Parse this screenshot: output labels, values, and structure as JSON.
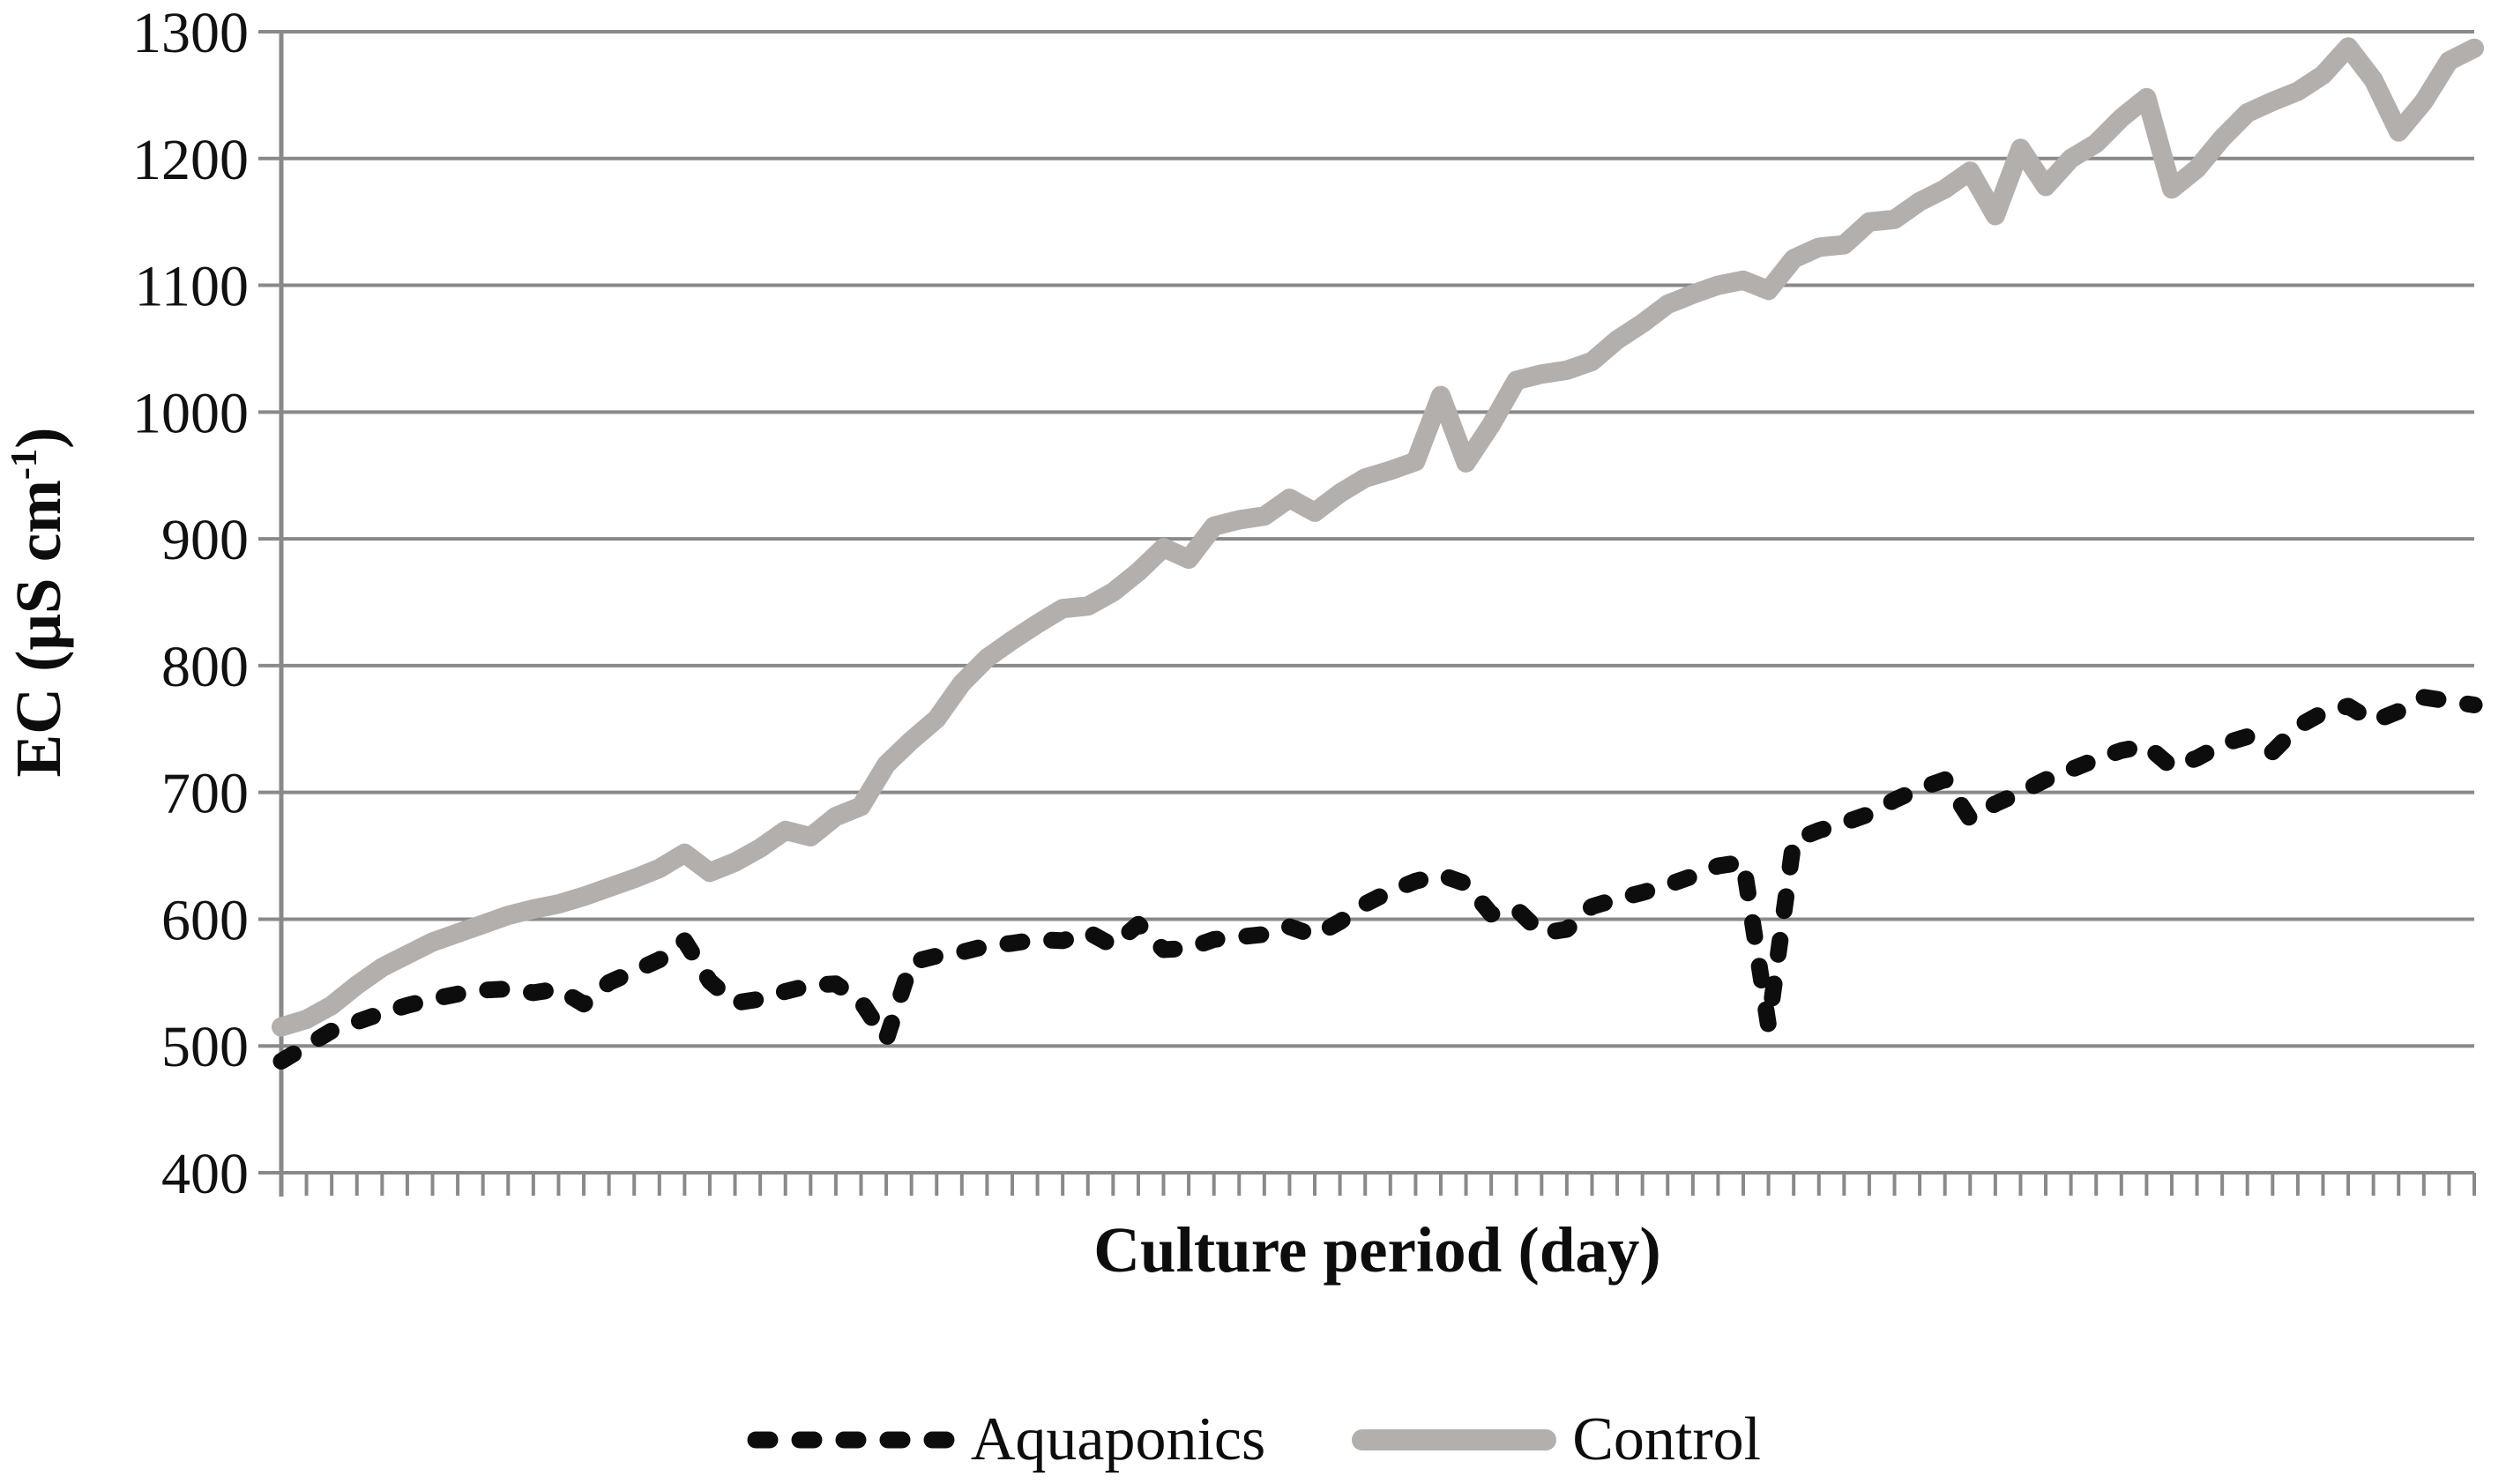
{
  "axes": {
    "x": {
      "title": "Culture period (day)",
      "tick_count": 88,
      "tick_labels_visible": false
    },
    "y": {
      "title_prefix": "EC (μS cm",
      "title_sup": "-1",
      "title_suffix": ")",
      "tick_labels": [
        400,
        500,
        600,
        700,
        800,
        900,
        1000,
        1100,
        1200,
        1300
      ]
    }
  },
  "legend": {
    "items": [
      {
        "label": "Aquaponics",
        "style": "dashed",
        "color": "#0d0d0d"
      },
      {
        "label": "Control",
        "style": "solid",
        "color": "#b3afad"
      }
    ]
  },
  "colors": {
    "aquaponics": "#0d0d0d",
    "control": "#b3afad",
    "grid": "#898989",
    "text": "#111111",
    "background": "#ffffff"
  },
  "chart_data": {
    "type": "line",
    "title": "",
    "xlabel": "Culture period (day)",
    "ylabel": "EC (μS cm-1)",
    "ylim": [
      400,
      1300
    ],
    "yticks": [
      400,
      500,
      600,
      700,
      800,
      900,
      1000,
      1100,
      1200,
      1300
    ],
    "grid": "horizontal",
    "legend_position": "bottom",
    "x_unit": "day",
    "x": [
      1,
      2,
      3,
      4,
      5,
      6,
      7,
      8,
      9,
      10,
      11,
      12,
      13,
      14,
      15,
      16,
      17,
      18,
      19,
      20,
      21,
      22,
      23,
      24,
      25,
      26,
      27,
      28,
      29,
      30,
      31,
      32,
      33,
      34,
      35,
      36,
      37,
      38,
      39,
      40,
      41,
      42,
      43,
      44,
      45,
      46,
      47,
      48,
      49,
      50,
      51,
      52,
      53,
      54,
      55,
      56,
      57,
      58,
      59,
      60,
      61,
      62,
      63,
      64,
      65,
      66,
      67,
      68,
      69,
      70,
      71,
      72,
      73,
      74,
      75,
      76,
      77,
      78,
      79,
      80,
      81,
      82,
      83,
      84,
      85,
      86,
      87,
      88
    ],
    "series": [
      {
        "name": "Aquaponics",
        "line_style": "dashed",
        "color": "#0d0d0d",
        "values": [
          488,
          500,
          512,
          519,
          526,
          532,
          537,
          541,
          544,
          545,
          542,
          545,
          533,
          550,
          559,
          568,
          583,
          551,
          534,
          537,
          543,
          548,
          549,
          535,
          505,
          566,
          571,
          574,
          579,
          581,
          584,
          583,
          590,
          579,
          596,
          576,
          577,
          584,
          586,
          588,
          594,
          587,
          598,
          612,
          622,
          630,
          635,
          628,
          604,
          608,
          589,
          592,
          610,
          616,
          621,
          627,
          634,
          642,
          645,
          516,
          662,
          670,
          676,
          683,
          694,
          703,
          710,
          679,
          691,
          700,
          710,
          718,
          726,
          733,
          737,
          720,
          727,
          738,
          744,
          732,
          752,
          763,
          768,
          756,
          764,
          775,
          772,
          769
        ]
      },
      {
        "name": "Control",
        "line_style": "solid",
        "color": "#b3afad",
        "values": [
          515,
          521,
          532,
          548,
          562,
          572,
          582,
          589,
          596,
          603,
          608,
          612,
          618,
          625,
          632,
          640,
          652,
          637,
          645,
          656,
          670,
          665,
          681,
          689,
          722,
          741,
          758,
          786,
          806,
          820,
          833,
          845,
          847,
          858,
          874,
          893,
          884,
          910,
          915,
          918,
          932,
          921,
          936,
          948,
          954,
          961,
          1013,
          960,
          990,
          1025,
          1030,
          1033,
          1040,
          1057,
          1070,
          1085,
          1093,
          1100,
          1104,
          1096,
          1121,
          1130,
          1132,
          1150,
          1152,
          1166,
          1176,
          1190,
          1155,
          1208,
          1178,
          1200,
          1212,
          1232,
          1248,
          1176,
          1192,
          1216,
          1236,
          1245,
          1253,
          1266,
          1288,
          1262,
          1221,
          1245,
          1277,
          1287
        ]
      }
    ]
  }
}
